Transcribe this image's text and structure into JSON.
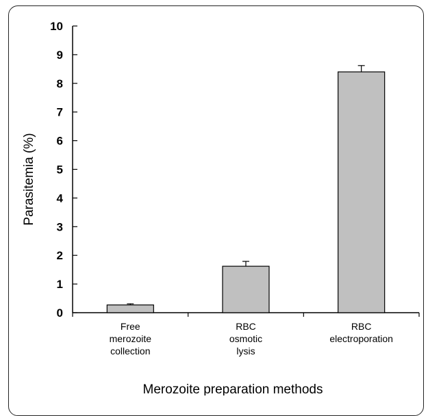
{
  "chart_data": {
    "type": "bar",
    "title": "",
    "xlabel": "Merozoite preparation methods",
    "ylabel": "Parasitemia (%)",
    "ylim": [
      0,
      10
    ],
    "yticks": [
      "0",
      "1",
      "2",
      "3",
      "4",
      "5",
      "6",
      "7",
      "8",
      "9",
      "10"
    ],
    "categories": [
      [
        "Free",
        "merozoite",
        "collection"
      ],
      [
        "RBC",
        "osmotic",
        "lysis"
      ],
      [
        "RBC",
        "electroporation"
      ]
    ],
    "values": [
      0.27,
      1.62,
      8.4
    ],
    "errors": [
      0.04,
      0.17,
      0.22
    ],
    "grid": false,
    "legend": "none",
    "colors": {
      "bar_fill": "#c0c0c0",
      "bar_stroke": "#000000"
    }
  }
}
